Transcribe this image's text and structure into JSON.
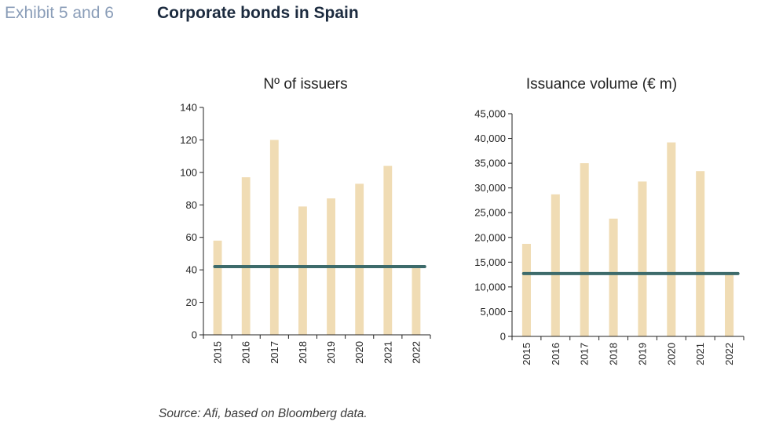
{
  "header": {
    "exhibit": "Exhibit 5 and 6",
    "title": "Corporate bonds in Spain"
  },
  "footer": {
    "source": "Source: Afi, based on Bloomberg data."
  },
  "colors": {
    "bar": "#f0dcb4",
    "line": "#3d6b6b",
    "axis": "#222222"
  },
  "chart_data": [
    {
      "type": "bar",
      "title": "Nº of issuers",
      "categories": [
        "2015",
        "2016",
        "2017",
        "2018",
        "2019",
        "2020",
        "2021",
        "2022"
      ],
      "values": [
        58,
        97,
        120,
        79,
        84,
        93,
        104,
        41
      ],
      "reference_line": 42,
      "ylim": [
        0,
        140
      ],
      "yticks": [
        0,
        20,
        40,
        60,
        80,
        100,
        120,
        140
      ],
      "ytick_labels": [
        "0",
        "20",
        "40",
        "60",
        "80",
        "100",
        "120",
        "140"
      ],
      "grid": false,
      "legend": "none"
    },
    {
      "type": "bar",
      "title": "Issuance volume (€ m)",
      "categories": [
        "2015",
        "2016",
        "2017",
        "2018",
        "2019",
        "2020",
        "2021",
        "2022"
      ],
      "values": [
        18700,
        28700,
        35000,
        23800,
        31300,
        39200,
        33400,
        12800
      ],
      "reference_line": 12700,
      "ylim": [
        0,
        45000
      ],
      "yticks": [
        0,
        5000,
        10000,
        15000,
        20000,
        25000,
        30000,
        35000,
        40000,
        45000
      ],
      "ytick_labels": [
        "0",
        "5,000",
        "10,000",
        "15,000",
        "20,000",
        "25,000",
        "30,000",
        "35,000",
        "40,000",
        "45,000"
      ],
      "grid": false,
      "legend": "none"
    }
  ]
}
